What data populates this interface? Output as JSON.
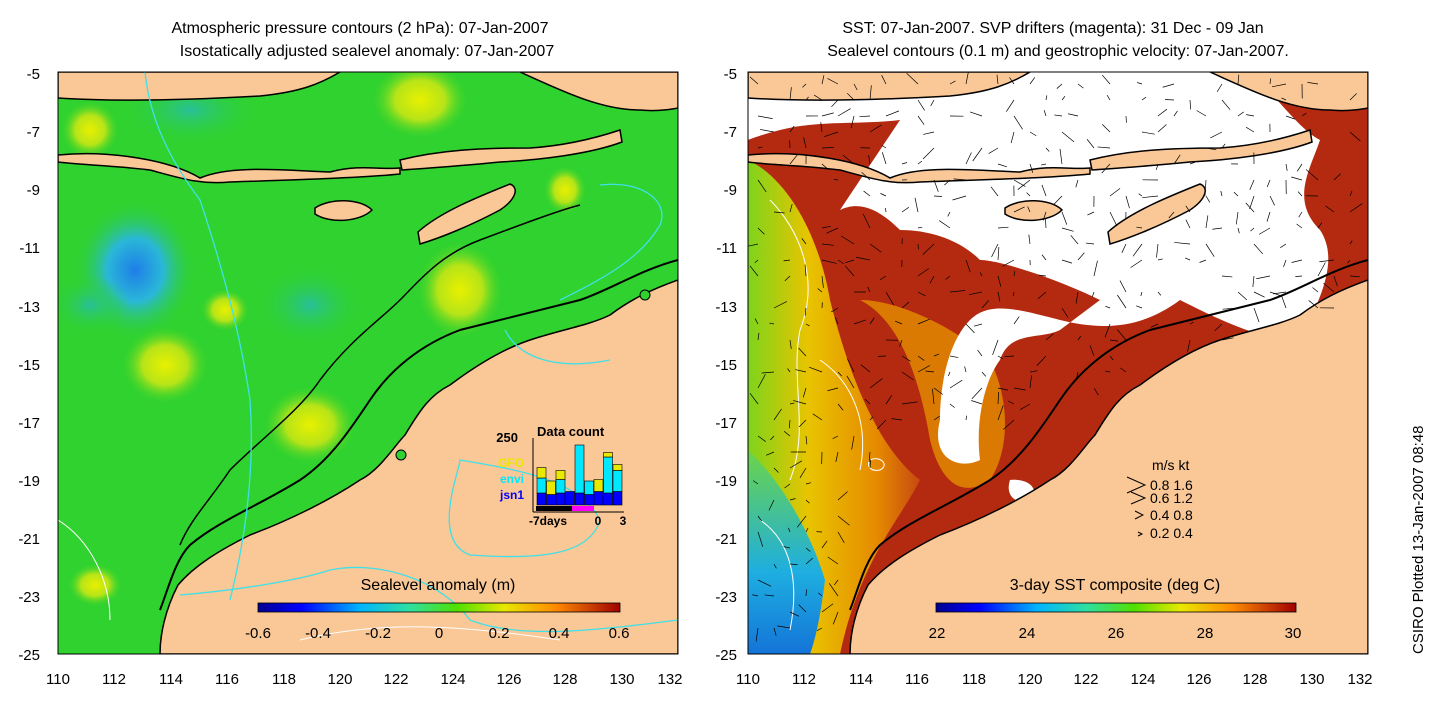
{
  "left": {
    "title_line1": "Atmospheric pressure contours (2 hPa): 07-Jan-2007",
    "title_line2": "Isostatically adjusted sealevel anomaly: 07-Jan-2007",
    "colorbar_label": "Sealevel anomaly (m)",
    "colorbar_ticks": [
      "-0.6",
      "-0.4",
      "-0.2",
      "0",
      "0.2",
      "0.4",
      "0.6"
    ],
    "colorbar_range": [
      -0.6,
      0.6
    ],
    "inset": {
      "count_label": "250",
      "title": "Data count",
      "legend": [
        {
          "name": "GFO",
          "color": "#e8e800"
        },
        {
          "name": "envi",
          "color": "#00e8ff"
        },
        {
          "name": "jsn1",
          "color": "#0000ff"
        }
      ],
      "xaxis_label": "-7days",
      "xticks": [
        "0",
        "3"
      ],
      "bars": [
        {
          "jsn1": 40,
          "envi": 50,
          "GFO": 35
        },
        {
          "jsn1": 35,
          "envi": 0,
          "GFO": 45
        },
        {
          "jsn1": 40,
          "envi": 45,
          "GFO": 30
        },
        {
          "jsn1": 45,
          "envi": 0,
          "GFO": 0
        },
        {
          "jsn1": 40,
          "envi": 160,
          "GFO": 0
        },
        {
          "jsn1": 35,
          "envi": 45,
          "GFO": 0
        },
        {
          "jsn1": 45,
          "envi": 0,
          "GFO": 40
        },
        {
          "jsn1": 40,
          "envi": 120,
          "GFO": 15
        },
        {
          "jsn1": 45,
          "envi": 70,
          "GFO": 20
        }
      ]
    }
  },
  "right": {
    "title_line1": "SST: 07-Jan-2007. SVP drifters (magenta): 31 Dec - 09 Jan",
    "title_line2": "Sealevel contours (0.1 m) and geostrophic velocity: 07-Jan-2007.",
    "colorbar_label": "3-day SST composite (deg C)",
    "colorbar_ticks": [
      "22",
      "24",
      "26",
      "28",
      "30"
    ],
    "colorbar_range": [
      22,
      30
    ],
    "speed_legend": {
      "header": "m/s  kt",
      "rows": [
        "0.8  1.6",
        "0.6  1.2",
        "0.4  0.8",
        "0.2  0.4"
      ]
    },
    "credit": "CSIRO Plotted 13-Jan-2007 08:48"
  },
  "axes": {
    "x_ticks": [
      "110",
      "112",
      "114",
      "116",
      "118",
      "120",
      "122",
      "124",
      "126",
      "128",
      "130",
      "132"
    ],
    "y_ticks": [
      "-5",
      "-7",
      "-9",
      "-11",
      "-13",
      "-15",
      "-17",
      "-19",
      "-21",
      "-23",
      "-25"
    ],
    "lon_range": [
      110,
      132
    ],
    "lat_range": [
      -5,
      -25
    ]
  },
  "colors": {
    "land": "#fac796",
    "ocean_anomaly": "#2fd22f",
    "ocean_sst_warm": "#b42a10",
    "cloud": "#ffffff",
    "contour_cyan": "#40e0e8"
  }
}
